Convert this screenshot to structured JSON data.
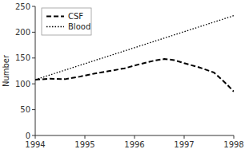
{
  "chart_data": {
    "type": "line",
    "ylabel": "Number",
    "series": [
      {
        "name": "CSF",
        "color": "#000000",
        "line_style": "dashed",
        "x": [
          1994,
          1994.3,
          1994.6,
          1994.9,
          1995.2,
          1995.5,
          1995.8,
          1996.1,
          1996.4,
          1996.6,
          1996.8,
          1997.0,
          1997.3,
          1997.6,
          1997.85,
          1998.0
        ],
        "values": [
          108,
          110,
          109,
          114,
          120,
          125,
          130,
          138,
          145,
          148,
          146,
          140,
          132,
          122,
          100,
          85
        ]
      },
      {
        "name": "Blood",
        "color": "#000000",
        "line_style": "dotted",
        "x": [
          1994,
          1998
        ],
        "values": [
          108,
          232
        ]
      }
    ],
    "xlim": [
      1994,
      1998
    ],
    "xticks": [
      1994,
      1995,
      1996,
      1997,
      1998
    ],
    "ylim": [
      0,
      250
    ],
    "yticks": [
      0,
      50,
      100,
      150,
      200,
      250
    ],
    "grid": false,
    "legend": "upper left"
  }
}
